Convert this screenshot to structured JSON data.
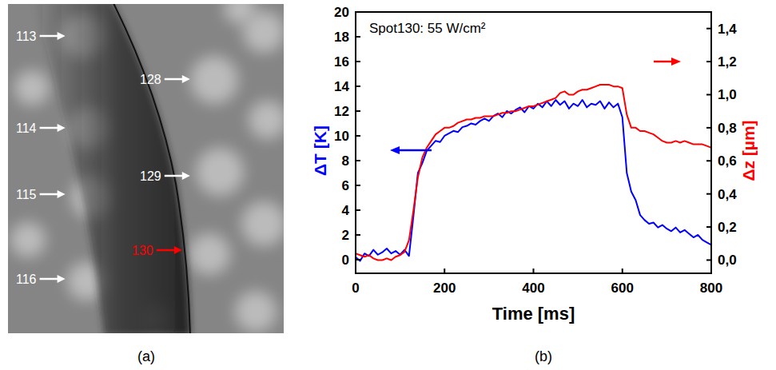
{
  "image_panel": {
    "caption": "(a)",
    "labels": [
      {
        "text": "113",
        "color": "#ffffff"
      },
      {
        "text": "114",
        "color": "#ffffff"
      },
      {
        "text": "115",
        "color": "#ffffff"
      },
      {
        "text": "116",
        "color": "#ffffff"
      },
      {
        "text": "128",
        "color": "#ffffff"
      },
      {
        "text": "129",
        "color": "#ffffff"
      },
      {
        "text": "130",
        "color": "#ff0000"
      }
    ]
  },
  "chart_data": {
    "type": "line",
    "caption": "(b)",
    "annotations": [
      "Spot130: 55 W/cm²"
    ],
    "x_label": "Time [ms]",
    "y_label": "ΔT [K]",
    "y2_label": "Δz [µm]",
    "xlim": [
      0,
      800
    ],
    "xticks": [
      0,
      200,
      400,
      600,
      800
    ],
    "ylim": [
      -1.1,
      20
    ],
    "yticks": [
      0,
      2,
      4,
      6,
      8,
      10,
      12,
      14,
      16,
      18,
      20
    ],
    "y2lim": [
      -0.08,
      1.5
    ],
    "y2ticks": [
      {
        "value": 0,
        "label": "0,0"
      },
      {
        "value": 0.2,
        "label": "0,2"
      },
      {
        "value": 0.4,
        "label": "0,4"
      },
      {
        "value": 0.6,
        "label": "0,6"
      },
      {
        "value": 0.8,
        "label": "0,8"
      },
      {
        "value": 1.0,
        "label": "1,0"
      },
      {
        "value": 1.2,
        "label": "1,2"
      },
      {
        "value": 1.4,
        "label": "1,4"
      }
    ],
    "x": [
      0,
      10,
      20,
      30,
      40,
      50,
      60,
      70,
      80,
      90,
      100,
      110,
      120,
      130,
      140,
      150,
      160,
      170,
      180,
      190,
      200,
      210,
      220,
      230,
      240,
      250,
      260,
      270,
      280,
      290,
      300,
      310,
      320,
      330,
      340,
      350,
      360,
      370,
      380,
      390,
      400,
      410,
      420,
      430,
      440,
      450,
      460,
      470,
      480,
      490,
      500,
      510,
      520,
      530,
      540,
      550,
      560,
      570,
      580,
      590,
      600,
      610,
      620,
      630,
      640,
      650,
      660,
      670,
      680,
      690,
      700,
      710,
      720,
      730,
      740,
      750,
      760,
      770,
      780,
      790,
      800
    ],
    "series": [
      {
        "color": "#0000ff",
        "values": [
          0.2,
          -0.1,
          0.5,
          0.3,
          0.8,
          0.4,
          0.6,
          0.9,
          0.5,
          0.7,
          0.4,
          0.8,
          0.3,
          3.5,
          7.0,
          7.8,
          8.8,
          9.2,
          9.6,
          9.5,
          10.0,
          10.2,
          10.4,
          10.3,
          10.7,
          10.8,
          11.0,
          10.9,
          11.2,
          11.4,
          11.2,
          11.6,
          11.8,
          11.5,
          12.0,
          11.8,
          12.1,
          12.3,
          11.9,
          12.4,
          12.2,
          12.6,
          12.3,
          12.8,
          12.4,
          12.9,
          12.5,
          12.8,
          12.2,
          12.6,
          12.4,
          12.9,
          12.3,
          12.6,
          12.5,
          12.8,
          12.2,
          12.7,
          12.3,
          12.6,
          11.5,
          7.0,
          5.5,
          4.8,
          3.6,
          3.2,
          2.9,
          3.0,
          2.6,
          2.8,
          2.5,
          2.3,
          2.6,
          2.2,
          2.4,
          2.1,
          1.8,
          2.0,
          1.6,
          1.4,
          1.2
        ]
      },
      {
        "color": "#ff0000",
        "axis": "y2",
        "values": [
          0.04,
          0.03,
          0.02,
          0.03,
          0.01,
          0.0,
          0.0,
          0.01,
          0.0,
          0.02,
          0.03,
          0.05,
          0.12,
          0.3,
          0.5,
          0.62,
          0.68,
          0.72,
          0.76,
          0.78,
          0.8,
          0.8,
          0.81,
          0.83,
          0.84,
          0.85,
          0.85,
          0.86,
          0.86,
          0.87,
          0.87,
          0.87,
          0.88,
          0.89,
          0.89,
          0.9,
          0.9,
          0.91,
          0.92,
          0.93,
          0.93,
          0.94,
          0.95,
          0.96,
          0.97,
          0.98,
          1.01,
          1.02,
          1.0,
          1.0,
          1.02,
          1.03,
          1.03,
          1.04,
          1.05,
          1.06,
          1.06,
          1.06,
          1.05,
          1.05,
          1.04,
          0.88,
          0.8,
          0.8,
          0.78,
          0.78,
          0.77,
          0.76,
          0.74,
          0.72,
          0.71,
          0.71,
          0.72,
          0.71,
          0.72,
          0.71,
          0.7,
          0.7,
          0.7,
          0.69,
          0.68
        ]
      }
    ]
  }
}
